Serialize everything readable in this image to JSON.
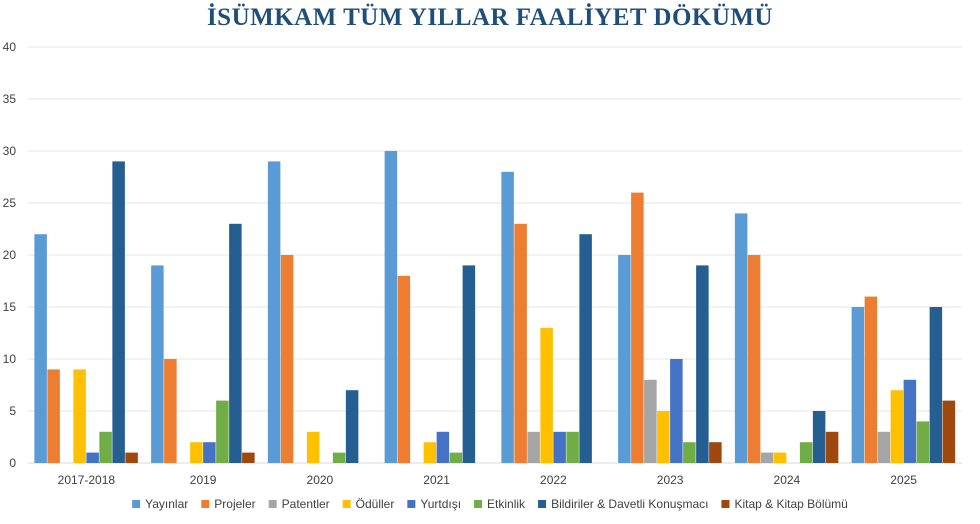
{
  "chart_data": {
    "type": "bar",
    "title": "İSÜMKAM TÜM YILLAR FAALİYET DÖKÜMÜ",
    "xlabel": "",
    "ylabel": "",
    "ylim": [
      0,
      40
    ],
    "yticks": [
      0,
      5,
      10,
      15,
      20,
      25,
      30,
      35,
      40
    ],
    "grid": true,
    "legend_position": "bottom",
    "categories": [
      "2017-2018",
      "2019",
      "2020",
      "2021",
      "2022",
      "2023",
      "2024",
      "2025"
    ],
    "series": [
      {
        "name": "Yayınlar",
        "color": "#5b9bd5",
        "values": [
          22,
          19,
          29,
          30,
          28,
          20,
          24,
          15
        ]
      },
      {
        "name": "Projeler",
        "color": "#ed7d31",
        "values": [
          9,
          10,
          20,
          18,
          23,
          26,
          20,
          16
        ]
      },
      {
        "name": "Patentler",
        "color": "#a5a5a5",
        "values": [
          0,
          0,
          0,
          0,
          3,
          8,
          1,
          3
        ]
      },
      {
        "name": "Ödüller",
        "color": "#ffc000",
        "values": [
          9,
          2,
          3,
          2,
          13,
          5,
          1,
          7
        ]
      },
      {
        "name": "Yurtdışı",
        "color": "#4472c4",
        "values": [
          1,
          2,
          0,
          3,
          3,
          10,
          0,
          8
        ]
      },
      {
        "name": "Etkinlik",
        "color": "#70ad47",
        "values": [
          3,
          6,
          1,
          1,
          3,
          2,
          2,
          4
        ]
      },
      {
        "name": "Bildiriler & Davetli Konuşmacı",
        "color": "#255e91",
        "values": [
          29,
          23,
          7,
          19,
          22,
          19,
          5,
          15
        ]
      },
      {
        "name": "Kitap & Kitap Bölümü",
        "color": "#9e480e",
        "values": [
          1,
          1,
          0,
          0,
          0,
          2,
          3,
          6
        ]
      }
    ]
  }
}
